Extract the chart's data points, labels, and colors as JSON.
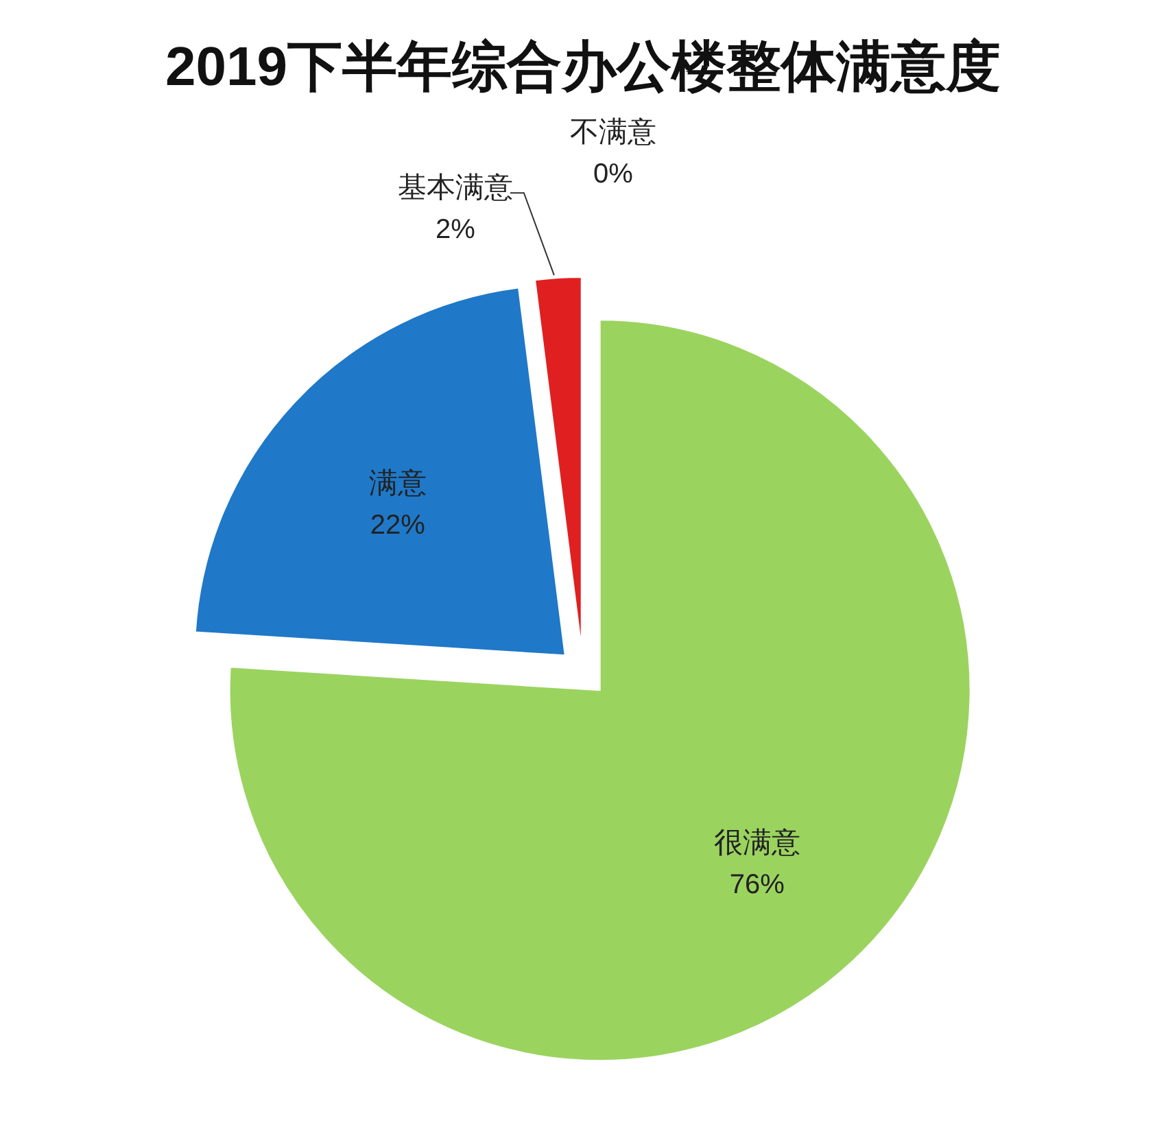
{
  "chart_data": {
    "type": "pie",
    "title": "2019下半年综合办公楼整体满意度",
    "categories": [
      "很满意",
      "满意",
      "基本满意",
      "不满意"
    ],
    "values": [
      76,
      22,
      2,
      0
    ],
    "colors": [
      "#9bd35f",
      "#1f78c8",
      "#e02020",
      "#c00000"
    ],
    "value_labels": [
      "76%",
      "22%",
      "2%",
      "0%"
    ]
  }
}
